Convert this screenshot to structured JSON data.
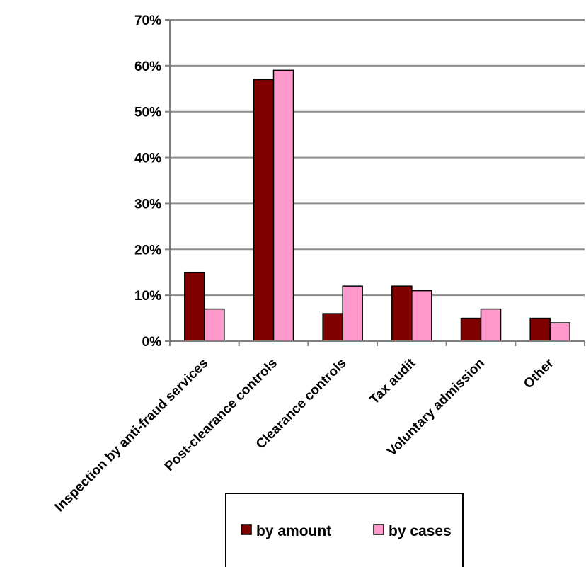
{
  "chart_data": {
    "type": "bar",
    "categories": [
      "Inspection by anti-fraud services",
      "Post-clearance controls",
      "Clearance controls",
      "Tax audit",
      "Voluntary admission",
      "Other"
    ],
    "series": [
      {
        "name": "by amount",
        "values": [
          15,
          57,
          6,
          12,
          5,
          5
        ],
        "color": "#800000"
      },
      {
        "name": "by cases",
        "values": [
          7,
          59,
          12,
          11,
          7,
          4
        ],
        "color": "#ff99cc"
      }
    ],
    "ylim": [
      0,
      70
    ],
    "yticks": [
      "0%",
      "10%",
      "20%",
      "30%",
      "40%",
      "50%",
      "60%",
      "70%"
    ],
    "grid": true,
    "legend_position": "bottom"
  }
}
